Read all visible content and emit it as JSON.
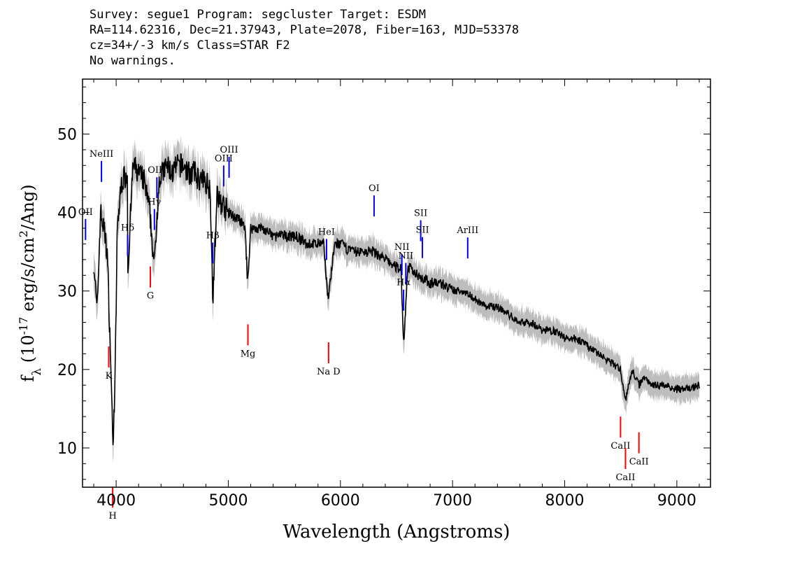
{
  "header": {
    "line1": "Survey: segue1 Program: segcluster Target: ESDM",
    "line2": "RA=114.62316, Dec=21.37943, Plate=2078, Fiber=163, MJD=53378",
    "line3": "cz=34+/-3 km/s Class=STAR F2",
    "line4": "No warnings."
  },
  "chart_data": {
    "type": "line",
    "title": "",
    "xlabel": "Wavelength (Angstroms)",
    "ylabel": "f_λ (10^-17 erg/s/cm^2/Ang)",
    "xlim": [
      3700,
      9300
    ],
    "ylim": [
      5,
      57
    ],
    "x_ticks": [
      4000,
      5000,
      6000,
      7000,
      8000,
      9000
    ],
    "y_ticks": [
      10,
      20,
      30,
      40,
      50
    ],
    "grid": false,
    "colors": {
      "flux": "#000000",
      "error_band": "#bdbdbd",
      "emission": "#0000ff",
      "absorption": "#ff0000"
    },
    "series": [
      {
        "x": [
          3800,
          3830,
          3860,
          3890,
          3920,
          3950,
          3970,
          3990,
          4010,
          4050,
          4100,
          4102,
          4150,
          4200,
          4250,
          4300,
          4340,
          4380,
          4450,
          4500,
          4550,
          4600,
          4650,
          4700,
          4750,
          4800,
          4840,
          4861,
          4900,
          4950,
          5000,
          5100,
          5150,
          5172,
          5200,
          5300,
          5400,
          5500,
          5600,
          5700,
          5800,
          5850,
          5890,
          5950,
          6000,
          6100,
          6200,
          6300,
          6400,
          6500,
          6540,
          6563,
          6600,
          6700,
          6800,
          6900,
          7000,
          7100,
          7200,
          7300,
          7400,
          7500,
          7600,
          7700,
          7800,
          7900,
          8000,
          8100,
          8200,
          8300,
          8400,
          8498,
          8542,
          8600,
          8662,
          8700,
          8800,
          8900,
          9000,
          9100,
          9200
        ],
        "y": [
          34,
          27,
          40,
          38,
          35,
          22,
          10.5,
          18,
          38,
          44,
          45,
          32,
          46,
          45,
          44,
          40,
          33,
          44,
          46,
          45,
          46,
          46,
          45,
          45,
          44,
          44,
          43,
          29,
          42,
          41,
          40,
          39,
          38,
          31,
          38,
          38,
          37,
          37,
          37,
          36,
          36,
          36,
          29,
          36,
          36,
          35,
          35,
          35,
          34,
          33,
          33,
          23,
          33,
          32,
          31,
          31,
          30,
          30,
          29,
          28,
          28,
          27,
          26,
          26,
          25,
          25,
          24,
          24,
          23,
          22,
          21,
          20,
          16,
          20,
          18,
          19,
          18,
          18,
          17.5,
          17.5,
          18
        ]
      }
    ],
    "emission_lines": [
      {
        "label": "OII",
        "x": 3727
      },
      {
        "label": "NeIII",
        "x": 3869
      },
      {
        "label": "Hδ",
        "x": 4102
      },
      {
        "label": "Hγ",
        "x": 4341
      },
      {
        "label": "OIII",
        "x": 4363
      },
      {
        "label": "Hβ",
        "x": 4861
      },
      {
        "label": "OIII",
        "x": 4959
      },
      {
        "label": "OIII",
        "x": 5007
      },
      {
        "label": "HeI",
        "x": 5876
      },
      {
        "label": "OI",
        "x": 6300
      },
      {
        "label": "NII",
        "x": 6548
      },
      {
        "label": "Hα",
        "x": 6563
      },
      {
        "label": "NII",
        "x": 6583
      },
      {
        "label": "SII",
        "x": 6716
      },
      {
        "label": "SII",
        "x": 6731
      },
      {
        "label": "ArIII",
        "x": 7135
      }
    ],
    "absorption_lines": [
      {
        "label": "K",
        "x": 3934
      },
      {
        "label": "H",
        "x": 3969
      },
      {
        "label": "G",
        "x": 4305
      },
      {
        "label": "Mg",
        "x": 5175
      },
      {
        "label": "Na D",
        "x": 5894
      },
      {
        "label": "CaII",
        "x": 8498
      },
      {
        "label": "CaII",
        "x": 8542
      },
      {
        "label": "CaII",
        "x": 8662
      }
    ]
  }
}
